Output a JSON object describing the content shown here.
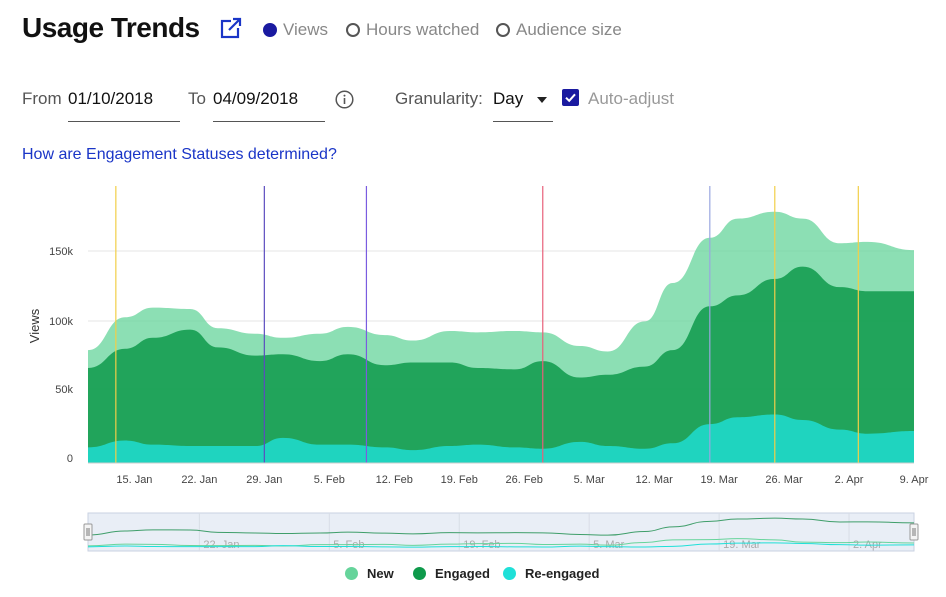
{
  "header": {
    "title": "Usage Trends",
    "metrics": [
      {
        "label": "Views",
        "selected": true
      },
      {
        "label": "Hours watched",
        "selected": false
      },
      {
        "label": "Audience size",
        "selected": false
      }
    ]
  },
  "filters": {
    "from_label": "From",
    "from_value": "01/10/2018",
    "to_label": "To",
    "to_value": "04/09/2018",
    "granularity_label": "Granularity:",
    "granularity_value": "Day",
    "auto_adjust_label": "Auto-adjust",
    "auto_adjust_checked": true
  },
  "help_link": "How are Engagement Statuses determined?",
  "colors": {
    "new": "#66d49b",
    "engaged": "#0e9a4b",
    "reengaged": "#1fe0d8",
    "accent": "#1a1aa0",
    "link": "#1a35c7"
  },
  "chart_data": {
    "type": "area",
    "stacked": true,
    "ylabel": "Views",
    "xlabel": "",
    "yticks": [
      "0",
      "50k",
      "100k",
      "150k"
    ],
    "ylim": [
      0,
      200000
    ],
    "xticks": [
      "15. Jan",
      "22. Jan",
      "29. Jan",
      "5. Feb",
      "12. Feb",
      "19. Feb",
      "26. Feb",
      "5. Mar",
      "12. Mar",
      "19. Mar",
      "26. Mar",
      "2. Apr",
      "9. Apr"
    ],
    "x": [
      "2018-01-10",
      "2018-01-14",
      "2018-01-17",
      "2018-01-21",
      "2018-01-24",
      "2018-01-28",
      "2018-01-31",
      "2018-02-04",
      "2018-02-07",
      "2018-02-11",
      "2018-02-14",
      "2018-02-18",
      "2018-02-21",
      "2018-02-25",
      "2018-02-28",
      "2018-03-04",
      "2018-03-07",
      "2018-03-11",
      "2018-03-14",
      "2018-03-18",
      "2018-03-21",
      "2018-03-25",
      "2018-03-28",
      "2018-04-01",
      "2018-04-04",
      "2018-04-09"
    ],
    "series": [
      {
        "name": "Re-engaged",
        "values": [
          7000,
          12000,
          9000,
          8000,
          8000,
          8000,
          14000,
          9000,
          9000,
          7000,
          5000,
          8000,
          9000,
          7000,
          6000,
          11000,
          8000,
          6000,
          10000,
          24000,
          29000,
          31000,
          27000,
          20000,
          17000,
          19000
        ]
      },
      {
        "name": "Engaged",
        "values": [
          58000,
          67000,
          78000,
          85000,
          72000,
          66000,
          61000,
          61000,
          66000,
          60000,
          64000,
          61000,
          56000,
          57000,
          64000,
          47000,
          52000,
          60000,
          68000,
          86000,
          89000,
          99000,
          112000,
          104000,
          104000,
          102000
        ]
      },
      {
        "name": "New",
        "values": [
          13000,
          23000,
          22000,
          15000,
          14000,
          16000,
          12000,
          20000,
          20000,
          22000,
          16000,
          23000,
          26000,
          28000,
          21000,
          23000,
          17000,
          33000,
          49000,
          50000,
          56000,
          49000,
          35000,
          32000,
          36000,
          30000
        ]
      }
    ],
    "markers": [
      {
        "date": "2018-01-13",
        "color": "#f2cf48"
      },
      {
        "date": "2018-01-29",
        "color": "#5b4dbf"
      },
      {
        "date": "2018-02-09",
        "color": "#7a5ce0"
      },
      {
        "date": "2018-02-28",
        "color": "#e8607a"
      },
      {
        "date": "2018-03-18",
        "color": "#9aa6e0"
      },
      {
        "date": "2018-03-25",
        "color": "#f2cf48"
      },
      {
        "date": "2018-04-03",
        "color": "#f2cf48"
      }
    ],
    "navigator": {
      "xticks": [
        "22. Jan",
        "5. Feb",
        "19. Feb",
        "5. Mar",
        "19. Mar",
        "2. Apr"
      ]
    },
    "grid": true,
    "legend_position": "bottom-center"
  }
}
